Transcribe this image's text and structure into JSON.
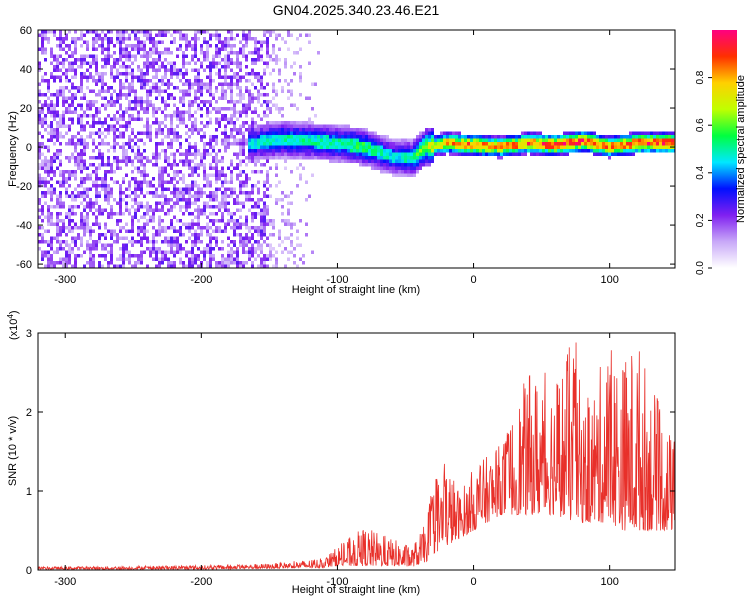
{
  "chart_data": [
    {
      "type": "heatmap",
      "title": "GN04.2025.340.23.46.E21",
      "xlabel": "Height of straight line (km)",
      "ylabel": "Frequency (Hz)",
      "xlim": [
        -320,
        148
      ],
      "ylim": [
        -62,
        60
      ],
      "x_ticks": [
        -300,
        -200,
        -100,
        0,
        100
      ],
      "x_tick_labels": [
        "-300",
        "-200",
        "-100",
        "0",
        "100"
      ],
      "y_ticks": [
        60,
        40,
        20,
        0,
        -20,
        -40,
        -60
      ],
      "y_tick_labels": [
        "60",
        "40",
        "20",
        "0",
        "-20",
        "-40",
        "-60"
      ],
      "colorbar": {
        "label": "Normalized spectral amplitude",
        "range": [
          0,
          1
        ],
        "ticks": [
          0.0,
          0.2,
          0.4,
          0.6,
          0.8
        ],
        "tick_labels": [
          "0.0",
          "0.2",
          "0.4",
          "0.6",
          "0.8"
        ],
        "colors": [
          "#ffffff",
          "#c8a8f8",
          "#8020f0",
          "#0010ff",
          "#00e8ff",
          "#00ff40",
          "#c0ff00",
          "#ffd000",
          "#ff3000",
          "#ff0080"
        ]
      },
      "ridge": {
        "x": [
          -160,
          -140,
          -120,
          -100,
          -80,
          -60,
          -45,
          -35,
          -20,
          0,
          20,
          40,
          60,
          80,
          100,
          120,
          148
        ],
        "frequency_hz": [
          2,
          4,
          3,
          2,
          0,
          -5,
          -6,
          0,
          2,
          1,
          0,
          2,
          1,
          3,
          0,
          2,
          2
        ],
        "amplitude": [
          0.35,
          0.4,
          0.4,
          0.4,
          0.45,
          0.35,
          0.4,
          0.55,
          0.7,
          0.75,
          0.7,
          0.75,
          0.8,
          0.8,
          0.75,
          0.8,
          0.8
        ]
      },
      "noise_region_x": [
        -320,
        -150
      ]
    },
    {
      "type": "line",
      "xlabel": "Height of straight line (km)",
      "ylabel": "SNR (10 * v/v)",
      "scale_label": "(x10",
      "scale_exponent": "4",
      "scale_suffix": ")",
      "xlim": [
        -320,
        148
      ],
      "ylim": [
        0,
        3
      ],
      "x_ticks": [
        -300,
        -200,
        -100,
        0,
        100
      ],
      "x_tick_labels": [
        "-300",
        "-200",
        "-100",
        "0",
        "100"
      ],
      "y_ticks": [
        0,
        1,
        2,
        3
      ],
      "y_tick_labels": [
        "0",
        "1",
        "2",
        "3"
      ],
      "series": [
        {
          "name": "SNR",
          "color": "#e8302a",
          "envelope_x": [
            -320,
            -250,
            -200,
            -150,
            -110,
            -100,
            -80,
            -60,
            -45,
            -35,
            -30,
            -20,
            -10,
            0,
            20,
            40,
            60,
            75,
            80,
            100,
            110,
            120,
            130,
            148
          ],
          "envelope_peak": [
            0.04,
            0.05,
            0.06,
            0.08,
            0.15,
            0.3,
            0.55,
            0.4,
            0.3,
            0.6,
            1.1,
            1.4,
            1.0,
            1.3,
            1.6,
            2.5,
            2.5,
            3.0,
            2.0,
            2.9,
            2.7,
            3.0,
            2.4,
            1.6
          ],
          "envelope_base": [
            0.01,
            0.01,
            0.01,
            0.02,
            0.03,
            0.05,
            0.05,
            0.05,
            0.04,
            0.1,
            0.2,
            0.3,
            0.4,
            0.5,
            0.7,
            0.7,
            0.7,
            0.6,
            0.6,
            0.6,
            0.5,
            0.5,
            0.5,
            0.5
          ]
        }
      ]
    }
  ]
}
